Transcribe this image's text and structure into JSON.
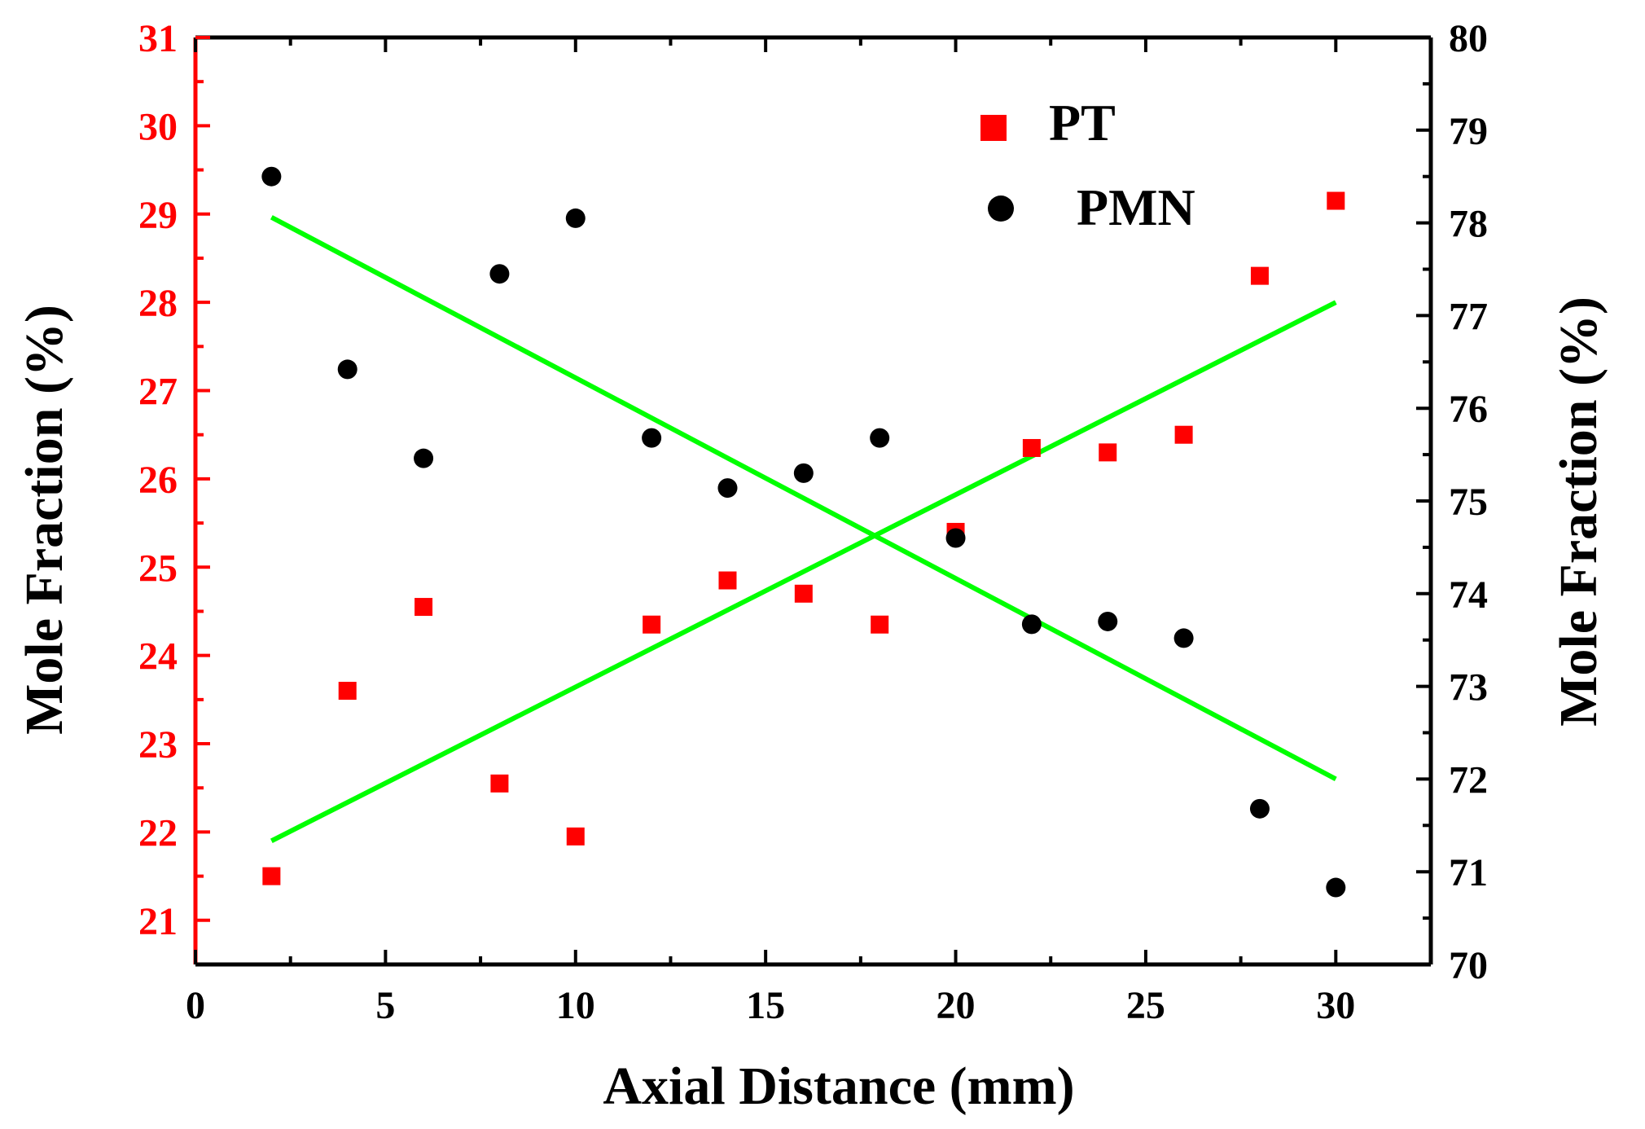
{
  "chart_data": {
    "type": "scatter",
    "title": "",
    "xlabel": "Axial Distance (mm)",
    "ylabel_left": "Mole Fraction (%)",
    "ylabel_right": "Mole Fraction (%)",
    "xlim": [
      0,
      32.5
    ],
    "ylim_left": [
      20.5,
      31
    ],
    "ylim_right": [
      70,
      80
    ],
    "xticks": [
      0,
      5,
      10,
      15,
      20,
      25,
      30
    ],
    "yticks_left": [
      21,
      22,
      23,
      24,
      25,
      26,
      27,
      28,
      29,
      30,
      31
    ],
    "yticks_right": [
      70,
      71,
      72,
      73,
      74,
      75,
      76,
      77,
      78,
      79,
      80
    ],
    "legend_position": "top-right",
    "colors": {
      "pt": "#ff0000",
      "pmn": "#000000",
      "fit": "#00ff00",
      "left_axis": "#ff0000",
      "right_axis": "#000000"
    },
    "series": [
      {
        "name": "PT",
        "axis": "left",
        "marker": "square",
        "x": [
          2,
          4,
          6,
          8,
          10,
          12,
          14,
          16,
          18,
          20,
          22,
          24,
          26,
          28,
          30
        ],
        "y": [
          21.5,
          23.6,
          24.55,
          22.55,
          21.95,
          24.35,
          24.85,
          24.7,
          24.35,
          25.4,
          26.35,
          26.3,
          26.5,
          28.3,
          29.15
        ]
      },
      {
        "name": "PMN",
        "axis": "right",
        "marker": "circle",
        "x": [
          2,
          4,
          6,
          8,
          10,
          12,
          14,
          16,
          18,
          20,
          22,
          24,
          26,
          28,
          30
        ],
        "y": [
          78.5,
          76.42,
          75.46,
          77.45,
          78.05,
          75.68,
          75.14,
          75.3,
          75.68,
          74.6,
          73.67,
          73.7,
          73.52,
          71.68,
          70.83
        ]
      }
    ],
    "fit_lines": [
      {
        "name": "PT linear fit",
        "axis": "left",
        "x": [
          2,
          30
        ],
        "y": [
          21.9,
          28.0
        ]
      },
      {
        "name": "PMN linear fit",
        "axis": "right",
        "x": [
          2,
          30
        ],
        "y": [
          78.06,
          72.0
        ]
      }
    ]
  }
}
